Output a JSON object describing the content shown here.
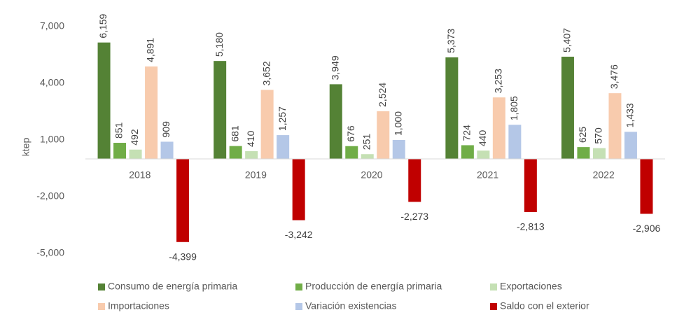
{
  "chart_data": {
    "type": "bar",
    "y_label": "ktep",
    "categories": [
      "2018",
      "2019",
      "2020",
      "2021",
      "2022"
    ],
    "series": [
      {
        "name": "Consumo de energía primaria",
        "color": "#548235",
        "values": [
          6159,
          5180,
          3949,
          5373,
          5407
        ],
        "value_labels": [
          "6,159",
          "5,180",
          "3,949",
          "5,373",
          "5,407"
        ]
      },
      {
        "name": "Producción de energía primaria",
        "color": "#70ad47",
        "values": [
          851,
          681,
          676,
          724,
          625
        ],
        "value_labels": [
          "851",
          "681",
          "676",
          "724",
          "625"
        ]
      },
      {
        "name": "Exportaciones",
        "color": "#c5e0b4",
        "values": [
          492,
          410,
          251,
          440,
          570
        ],
        "value_labels": [
          "492",
          "410",
          "251",
          "440",
          "570"
        ]
      },
      {
        "name": "Importaciones",
        "color": "#f8cbad",
        "values": [
          4891,
          3652,
          2524,
          3253,
          3476
        ],
        "value_labels": [
          "4,891",
          "3,652",
          "2,524",
          "3,253",
          "3,476"
        ]
      },
      {
        "name": "Variación existencias",
        "color": "#b4c7e7",
        "values": [
          909,
          1257,
          1000,
          1805,
          1433
        ],
        "value_labels": [
          "909",
          "1,257",
          "1,000",
          "1,805",
          "1,433"
        ]
      },
      {
        "name": "Saldo con el exterior",
        "color": "#c00000",
        "values": [
          -4399,
          -3242,
          -2273,
          -2813,
          -2906
        ],
        "value_labels": [
          "-4,399",
          "-3,242",
          "-2,273",
          "-2,813",
          "-2,906"
        ]
      }
    ],
    "ylim": [
      -5000,
      7000
    ],
    "yticks": [
      {
        "value": -5000,
        "label": "-5,000"
      },
      {
        "value": -2000,
        "label": "-2,000"
      },
      {
        "value": 1000,
        "label": "1,000"
      },
      {
        "value": 4000,
        "label": "4,000"
      },
      {
        "value": 7000,
        "label": "7,000"
      }
    ],
    "grid": false,
    "legend": "bottom"
  }
}
